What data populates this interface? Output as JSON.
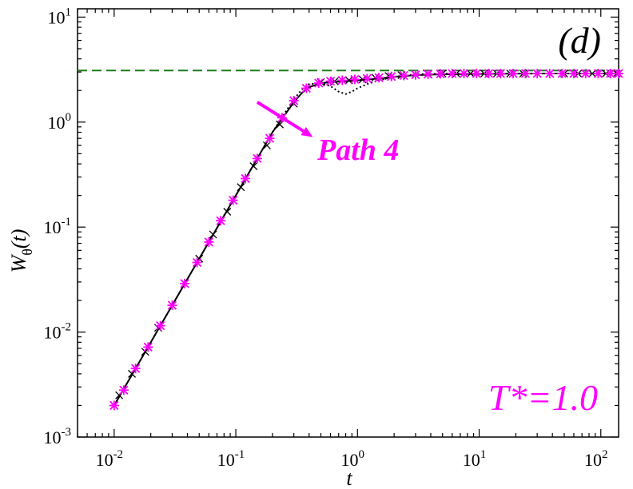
{
  "chart_data": {
    "type": "line",
    "title": "",
    "panel_label": "(d)",
    "xlabel": "t",
    "ylabel_main": "W",
    "ylabel_subscript": "θ",
    "ylabel_suffix": "(t)",
    "x_scale": "log",
    "y_scale": "log",
    "xlim": [
      0.005,
      140
    ],
    "ylim": [
      0.001,
      12
    ],
    "x_ticks": [
      {
        "base": "10",
        "exp": "-2",
        "value": 0.01
      },
      {
        "base": "10",
        "exp": "-1",
        "value": 0.1
      },
      {
        "base": "10",
        "exp": "0",
        "value": 1
      },
      {
        "base": "10",
        "exp": "1",
        "value": 10
      },
      {
        "base": "10",
        "exp": "2",
        "value": 100
      }
    ],
    "y_ticks": [
      {
        "base": "10",
        "exp": "-3",
        "value": 0.001
      },
      {
        "base": "10",
        "exp": "-2",
        "value": 0.01
      },
      {
        "base": "10",
        "exp": "-1",
        "value": 0.1
      },
      {
        "base": "10",
        "exp": "0",
        "value": 1
      },
      {
        "base": "10",
        "exp": "1",
        "value": 10
      }
    ],
    "grid": false,
    "reference_line": {
      "y": 3.1,
      "style": "dashed",
      "color": "#1a7a1a"
    },
    "series": [
      {
        "style": "dotted",
        "color": "#000000",
        "x": [
          0.01,
          0.02,
          0.05,
          0.1,
          0.15,
          0.2,
          0.25,
          0.3,
          0.35,
          0.4,
          0.5,
          0.6,
          0.7,
          0.8,
          0.9,
          1.0,
          1.2,
          1.5,
          2,
          3,
          5,
          10,
          30,
          140
        ],
        "y": [
          0.002,
          0.008,
          0.05,
          0.2,
          0.45,
          0.8,
          1.2,
          1.65,
          2.05,
          2.3,
          2.35,
          2.2,
          1.95,
          1.85,
          1.95,
          2.1,
          2.3,
          2.5,
          2.7,
          2.85,
          2.9,
          2.9,
          2.9,
          2.9
        ]
      },
      {
        "style": "solid",
        "color": "#000000",
        "x": [
          0.01,
          0.02,
          0.05,
          0.1,
          0.15,
          0.2,
          0.25,
          0.3,
          0.35,
          0.4,
          0.5,
          0.6,
          0.8,
          1.0,
          1.5,
          2,
          3,
          5,
          10,
          30,
          140
        ],
        "y": [
          0.002,
          0.008,
          0.05,
          0.2,
          0.45,
          0.8,
          1.15,
          1.55,
          1.9,
          2.15,
          2.35,
          2.4,
          2.45,
          2.5,
          2.6,
          2.7,
          2.8,
          2.85,
          2.88,
          2.9,
          2.9
        ]
      },
      {
        "style": "markers-x",
        "color": "#000000",
        "x": [
          0.011,
          0.014,
          0.018,
          0.023,
          0.03,
          0.038,
          0.05,
          0.065,
          0.085,
          0.11,
          0.14,
          0.18,
          0.23,
          0.3,
          0.38,
          0.5,
          0.65,
          0.85,
          1.1,
          1.4,
          1.8,
          2.3,
          3,
          3.8,
          5,
          6.5,
          8.5,
          11,
          14,
          18,
          23,
          30,
          38,
          50,
          65,
          85,
          110,
          135
        ],
        "y": [
          0.0025,
          0.004,
          0.0065,
          0.011,
          0.018,
          0.029,
          0.05,
          0.085,
          0.14,
          0.24,
          0.38,
          0.6,
          0.95,
          1.5,
          2.1,
          2.4,
          2.45,
          2.5,
          2.55,
          2.65,
          2.75,
          2.8,
          2.85,
          2.88,
          2.9,
          2.9,
          2.9,
          2.9,
          2.9,
          2.9,
          2.9,
          2.9,
          2.9,
          2.9,
          2.9,
          2.9,
          2.9,
          2.9
        ]
      },
      {
        "style": "markers-star",
        "color": "#ff00ff",
        "x": [
          0.01,
          0.012,
          0.015,
          0.019,
          0.024,
          0.03,
          0.038,
          0.048,
          0.06,
          0.075,
          0.095,
          0.12,
          0.15,
          0.19,
          0.24,
          0.3,
          0.38,
          0.48,
          0.6,
          0.75,
          0.95,
          1.2,
          1.5,
          1.9,
          2.4,
          3,
          3.8,
          4.8,
          6,
          7.5,
          9.5,
          12,
          15,
          19,
          24,
          30,
          38,
          48,
          60,
          75,
          95,
          120,
          140
        ],
        "y": [
          0.002,
          0.0028,
          0.0045,
          0.0072,
          0.0115,
          0.018,
          0.029,
          0.046,
          0.072,
          0.115,
          0.18,
          0.29,
          0.45,
          0.7,
          1.1,
          1.6,
          2.1,
          2.35,
          2.45,
          2.5,
          2.55,
          2.6,
          2.65,
          2.72,
          2.78,
          2.82,
          2.86,
          2.88,
          2.9,
          2.9,
          2.9,
          2.9,
          2.9,
          2.9,
          2.9,
          2.9,
          2.9,
          2.9,
          2.9,
          2.9,
          2.9,
          2.9,
          2.9
        ]
      }
    ],
    "annotations": [
      {
        "text": "Path 4",
        "color": "#ff00ff",
        "style": "bold-italic"
      },
      {
        "text": "T*=1.0",
        "color": "#ff00ff",
        "style": "italic"
      }
    ],
    "arrow": {
      "from": [
        0.15,
        1.55
      ],
      "to": [
        0.43,
        0.72
      ],
      "color": "#ff00ff"
    }
  }
}
